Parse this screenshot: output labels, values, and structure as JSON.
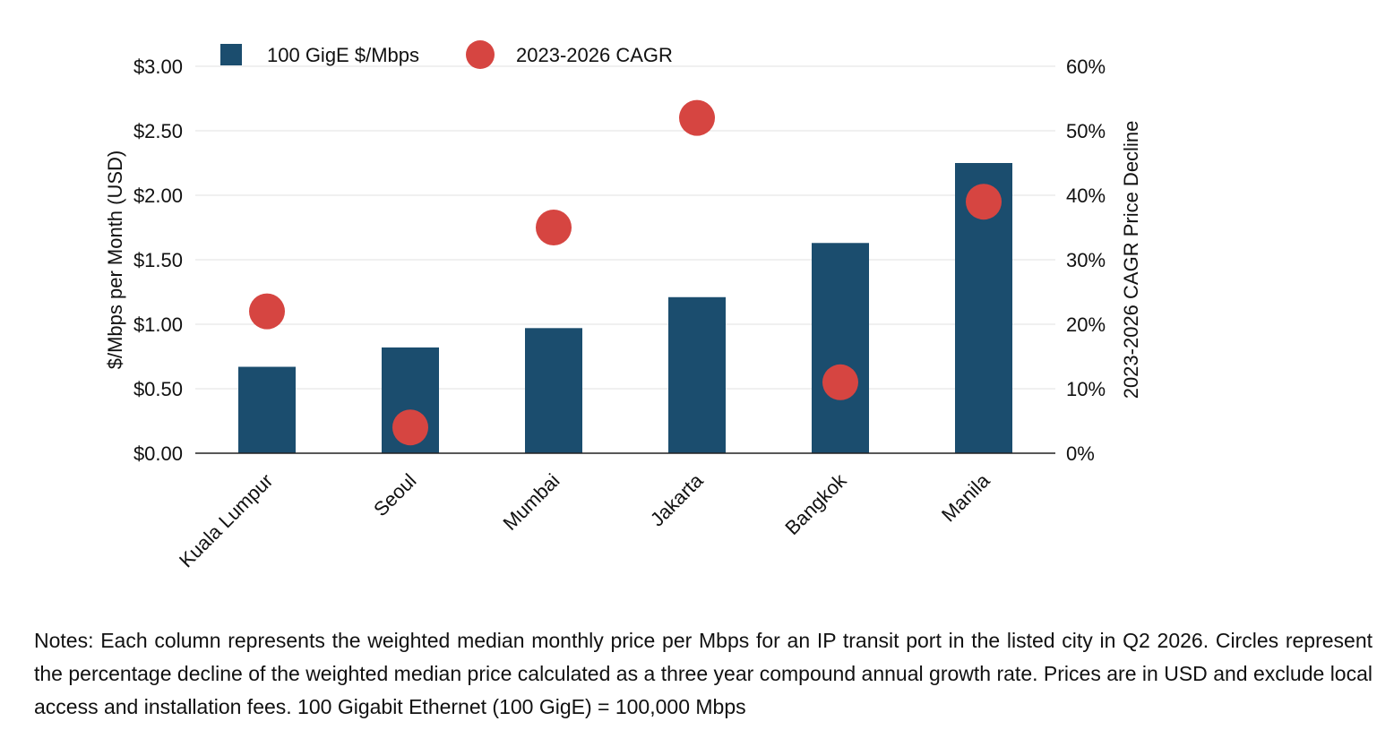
{
  "chart_data": {
    "type": "bar",
    "categories": [
      "Kuala Lumpur",
      "Seoul",
      "Mumbai",
      "Jakarta",
      "Bangkok",
      "Manila"
    ],
    "series": [
      {
        "name": "100 GigE $/Mbps",
        "type": "bar",
        "axis": "left",
        "color": "#1b4d6e",
        "values": [
          0.67,
          0.82,
          0.97,
          1.21,
          1.63,
          2.25
        ]
      },
      {
        "name": "2023-2026 CAGR",
        "type": "scatter",
        "axis": "right",
        "color": "#d64541",
        "values": [
          22,
          4,
          35,
          52,
          11,
          39
        ]
      }
    ],
    "y_left": {
      "label": "$/Mbps per Month (USD)",
      "range": [
        0,
        3
      ],
      "ticks": [
        0,
        0.5,
        1,
        1.5,
        2,
        2.5,
        3
      ],
      "tick_labels": [
        "$0.00",
        "$0.50",
        "$1.00",
        "$1.50",
        "$2.00",
        "$2.50",
        "$3.00"
      ]
    },
    "y_right": {
      "label": "2023-2026 CAGR Price Decline",
      "range": [
        0,
        60
      ],
      "ticks": [
        0,
        10,
        20,
        30,
        40,
        50,
        60
      ],
      "tick_labels": [
        "0%",
        "10%",
        "20%",
        "30%",
        "40%",
        "50%",
        "60%"
      ]
    },
    "grid": true,
    "legend_position": "top-left"
  },
  "notes": "Notes: Each column represents the weighted median monthly price per Mbps for an IP transit port in the listed city in Q2 2026. Circles represent the percentage decline of the weighted median price calculated as a three year compound annual growth rate. Prices are in USD and exclude local access and installation fees. 100 Gigabit Ethernet (100 GigE) = 100,000 Mbps"
}
